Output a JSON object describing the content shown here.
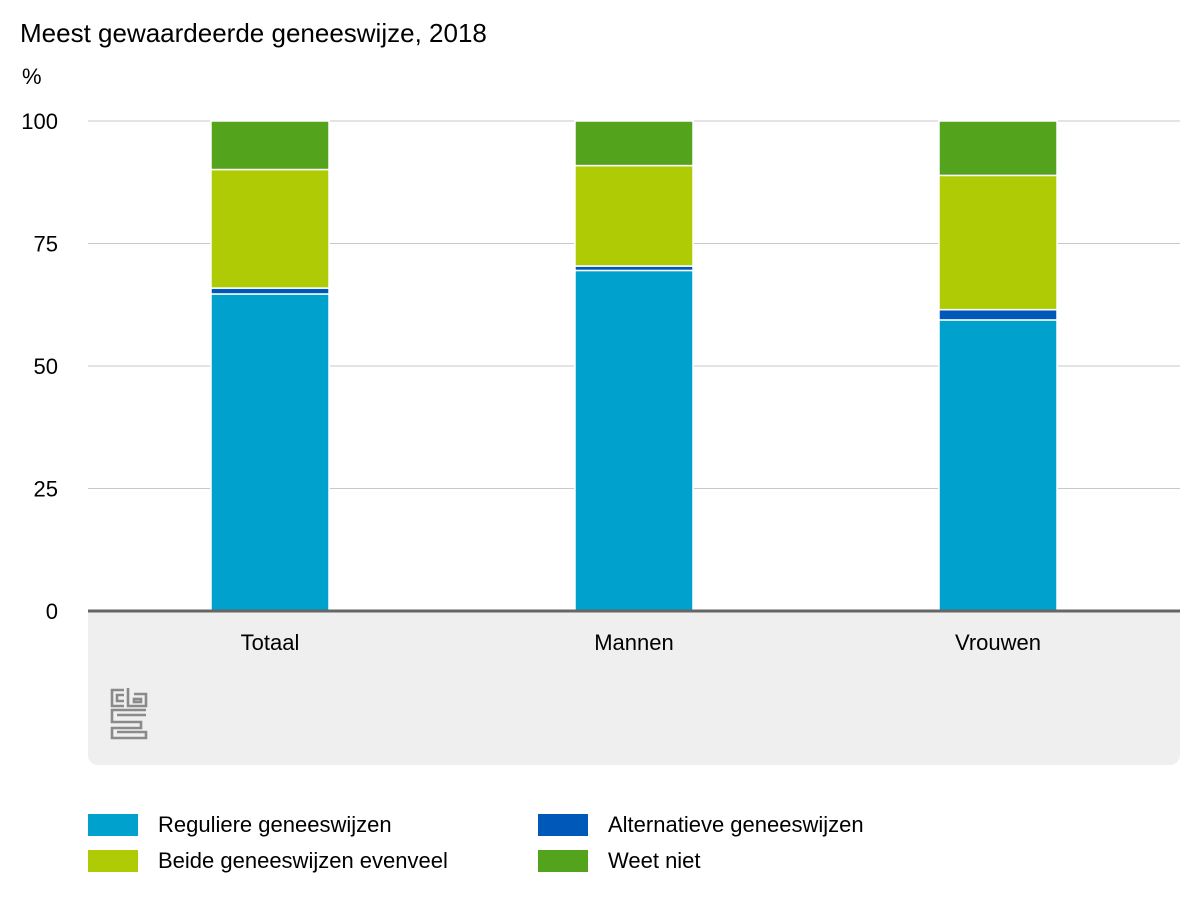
{
  "title": "Meest gewaardeerde geneeswijze, 2018",
  "unit_label": "%",
  "logo_text": "cbs",
  "colors": {
    "reguliere": "#00a1cd",
    "alternatieve": "#0058b8",
    "beide": "#afcb05",
    "weet_niet": "#53a31d",
    "grid": "#c8c8c8",
    "axis": "#666666",
    "panel": "#efefef"
  },
  "legend": [
    {
      "label": "Reguliere geneeswijzen",
      "color": "#00a1cd"
    },
    {
      "label": "Alternatieve geneeswijzen",
      "color": "#0058b8"
    },
    {
      "label": "Beide geneeswijzen evenveel",
      "color": "#afcb05"
    },
    {
      "label": "Weet niet",
      "color": "#53a31d"
    }
  ],
  "chart_data": {
    "type": "bar",
    "stacked": true,
    "title": "Meest gewaardeerde geneeswijze, 2018",
    "ylabel": "%",
    "ylim": [
      0,
      100
    ],
    "yticks": [
      0,
      25,
      50,
      75,
      100
    ],
    "grid": true,
    "legend_position": "bottom",
    "categories": [
      "Totaal",
      "Mannen",
      "Vrouwen"
    ],
    "series": [
      {
        "name": "Reguliere geneeswijzen",
        "color": "#00a1cd",
        "values": [
          64.7,
          69.5,
          59.4
        ]
      },
      {
        "name": "Alternatieve geneeswijzen",
        "color": "#0058b8",
        "values": [
          1.2,
          0.9,
          2.1
        ]
      },
      {
        "name": "Beide geneeswijzen evenveel",
        "color": "#afcb05",
        "values": [
          24.2,
          20.5,
          27.4
        ]
      },
      {
        "name": "Weet niet",
        "color": "#53a31d",
        "values": [
          9.9,
          9.1,
          11.1
        ]
      }
    ]
  }
}
